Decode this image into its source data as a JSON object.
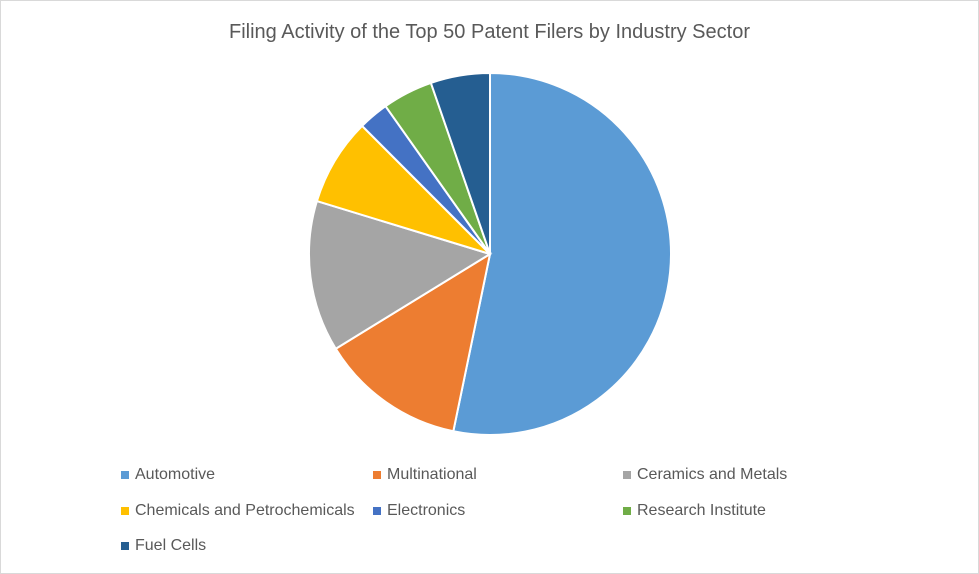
{
  "chart_data": {
    "type": "pie",
    "title": "Filing Activity of the Top 50 Patent Filers by Industry Sector",
    "categories": [
      "Automotive",
      "Multinational",
      "Ceramics and Metals",
      "Chemicals and Petrochemicals",
      "Electronics",
      "Research Institute",
      "Fuel Cells"
    ],
    "values": [
      53.3,
      13.0,
      13.5,
      7.8,
      2.7,
      4.5,
      5.3
    ],
    "colors": [
      "#5B9BD5",
      "#ED7D31",
      "#A5A5A5",
      "#FFC000",
      "#4472C4",
      "#70AD47",
      "#255E91"
    ],
    "legend_position": "bottom"
  }
}
